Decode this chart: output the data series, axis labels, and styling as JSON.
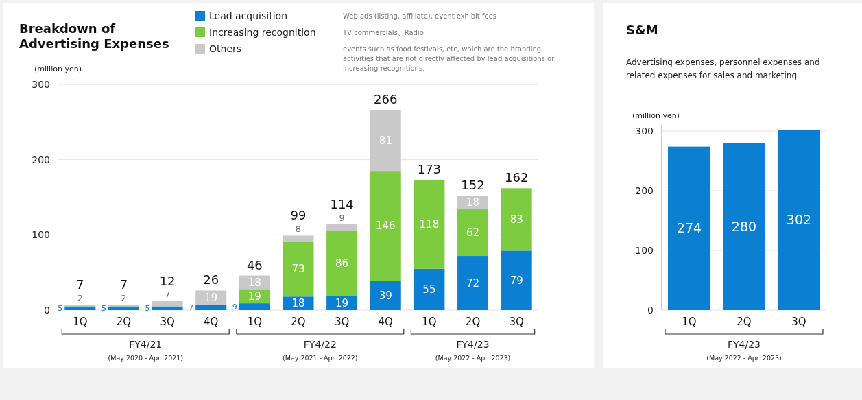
{
  "chart_data": [
    {
      "type": "bar",
      "stacked": true,
      "title": "Breakdown of Advertising Expenses",
      "ylabel": "(million yen)",
      "categories": [
        "1Q",
        "2Q",
        "3Q",
        "4Q",
        "1Q",
        "2Q",
        "3Q",
        "4Q",
        "1Q",
        "2Q",
        "3Q"
      ],
      "series": [
        {
          "name": "Lead acquisition",
          "color": "#0b7fd1",
          "values": [
            5,
            5,
            5,
            7,
            9,
            18,
            19,
            39,
            55,
            72,
            79
          ]
        },
        {
          "name": "Increasing recognition",
          "color": "#7dcb3f",
          "values": [
            null,
            null,
            null,
            null,
            19,
            73,
            86,
            146,
            118,
            62,
            83
          ]
        },
        {
          "name": "Others",
          "color": "#c9c9c9",
          "values": [
            2,
            2,
            7,
            19,
            18,
            8,
            9,
            81,
            null,
            18,
            null
          ]
        }
      ],
      "totals": [
        "7",
        "7",
        "12",
        "26",
        "46",
        "99",
        "114",
        "266",
        "173",
        "152",
        "162"
      ],
      "data_labels": true,
      "ylim": [
        0,
        300
      ],
      "yticks": [
        0,
        100,
        200,
        300
      ],
      "grid": "y",
      "legend": "top",
      "annotations": [
        "Web ads (listing, affiliate), event exhibit fees",
        "TV commercials、Radio",
        "events such as food festivals, etc, which are the branding activities that are not directly affected by lead acquisitions or increasing recognitions.",
        "FY4/21",
        "(May 2020 - Apr. 2021)",
        "FY4/22",
        "(May 2021 - Apr. 2022)",
        "FY4/23",
        "(May 2022 - Apr. 2023)"
      ]
    },
    {
      "type": "bar",
      "title": "S&M",
      "subtitle": "Advertising expenses, personnel expenses and related expenses for sales and marketing",
      "ylabel": "(million yen)",
      "categories": [
        "1Q",
        "2Q",
        "3Q"
      ],
      "series": [
        {
          "color": "#0b7fd1",
          "values": [
            274,
            280,
            302
          ]
        }
      ],
      "data_labels": true,
      "ylim": [
        0,
        310
      ],
      "yticks": [
        0,
        100,
        200,
        300
      ],
      "grid": "y",
      "annotations": [
        "FY4/23",
        "(May 2022 - Apr. 2023)"
      ]
    }
  ]
}
